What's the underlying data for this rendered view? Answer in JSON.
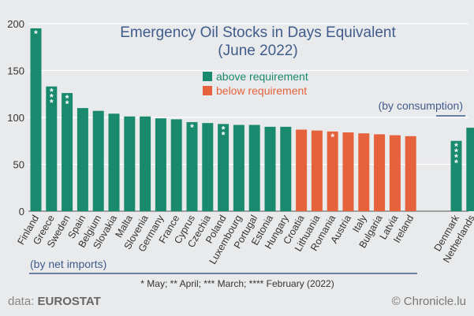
{
  "chart_data": {
    "type": "bar",
    "title": "Emergency Oil Stocks in Days Equivalent",
    "subtitle": "(June 2022)",
    "ylim": [
      0,
      200
    ],
    "yticks": [
      0,
      50,
      100,
      150,
      200
    ],
    "grid": true,
    "legend": [
      {
        "label": "above requirement",
        "color": "#1a8a6e"
      },
      {
        "label": "below requirement",
        "color": "#e5623d"
      }
    ],
    "groups": [
      {
        "label": "(by net imports)",
        "categories": [
          "Finland",
          "Greece",
          "Sweden",
          "Spain",
          "Belgium",
          "Slovakia",
          "Malta",
          "Slovenia",
          "Germany",
          "France",
          "Cyprus",
          "Czechia",
          "Poland",
          "Luxembourg",
          "Portugal",
          "Estonia",
          "Hungary",
          "Croatia",
          "Lithuania",
          "Romania",
          "Austria",
          "Italy",
          "Bulgaria",
          "Latvia",
          "Ireland"
        ]
      },
      {
        "label": "(by consumption)",
        "categories": [
          "Denmark",
          "Netherlands"
        ]
      }
    ],
    "categories": [
      "Finland",
      "Greece",
      "Sweden",
      "Spain",
      "Belgium",
      "Slovakia",
      "Malta",
      "Slovenia",
      "Germany",
      "France",
      "Cyprus",
      "Czechia",
      "Poland",
      "Luxembourg",
      "Portugal",
      "Estonia",
      "Hungary",
      "Croatia",
      "Lithuania",
      "Romania",
      "Austria",
      "Italy",
      "Bulgaria",
      "Latvia",
      "Ireland",
      "Denmark",
      "Netherlands"
    ],
    "values": [
      195,
      133,
      126,
      110,
      107,
      104,
      101,
      101,
      99,
      98,
      95,
      94,
      93,
      92,
      92,
      90,
      90,
      87,
      86,
      85,
      84,
      83,
      82,
      81,
      80,
      75,
      89
    ],
    "status": [
      "above",
      "above",
      "above",
      "above",
      "above",
      "above",
      "above",
      "above",
      "above",
      "above",
      "above",
      "above",
      "above",
      "above",
      "above",
      "above",
      "above",
      "below",
      "below",
      "below",
      "below",
      "below",
      "below",
      "below",
      "below",
      "above",
      "above"
    ],
    "marks": [
      "*",
      "***",
      "**",
      "",
      "",
      "",
      "",
      "",
      "",
      "",
      "*",
      "",
      "**",
      "",
      "",
      "",
      "",
      "",
      "",
      "*",
      "",
      "",
      "",
      "",
      "",
      "****",
      ""
    ],
    "footnote": "* May; ** April; *** March; **** February (2022)"
  },
  "footer": {
    "source_prefix": "data: ",
    "source_name": "EUROSTAT",
    "credit": "© Chronicle.lu"
  }
}
